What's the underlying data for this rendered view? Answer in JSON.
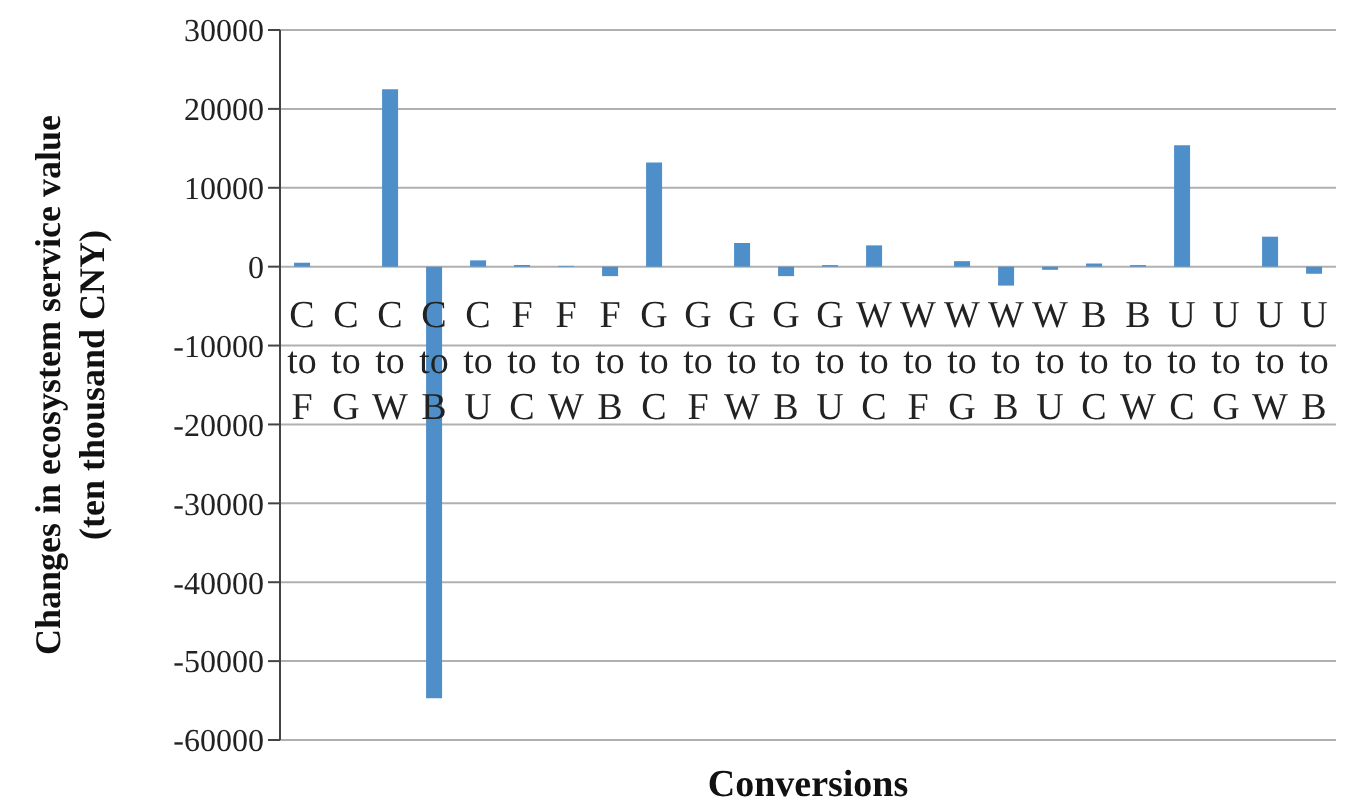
{
  "chart_data": {
    "type": "bar",
    "ylabel": "Changes in ecosystem service value (ten thousand CNY)",
    "xlabel": "Conversions",
    "categories": [
      "C to F",
      "C to G",
      "C to W",
      "C to B",
      "C to U",
      "F to C",
      "F to W",
      "F to B",
      "G to C",
      "G to F",
      "G to W",
      "G to B",
      "G to U",
      "W to C",
      "W to F",
      "W to G",
      "W to B",
      "W to U",
      "B to C",
      "B to W",
      "U to C",
      "U to G",
      "U to W",
      "U to B"
    ],
    "values": [
      500,
      0,
      22500,
      -54700,
      800,
      200,
      100,
      -1200,
      13200,
      0,
      3000,
      -1200,
      200,
      2700,
      0,
      700,
      -2400,
      -400,
      400,
      200,
      15400,
      0,
      3800,
      -900
    ],
    "color": "#4f8fc9",
    "ylim": [
      -60000,
      30000
    ],
    "yticks": [
      -60000,
      -50000,
      -40000,
      -30000,
      -20000,
      -10000,
      0,
      10000,
      20000,
      30000
    ],
    "grid": "y"
  }
}
